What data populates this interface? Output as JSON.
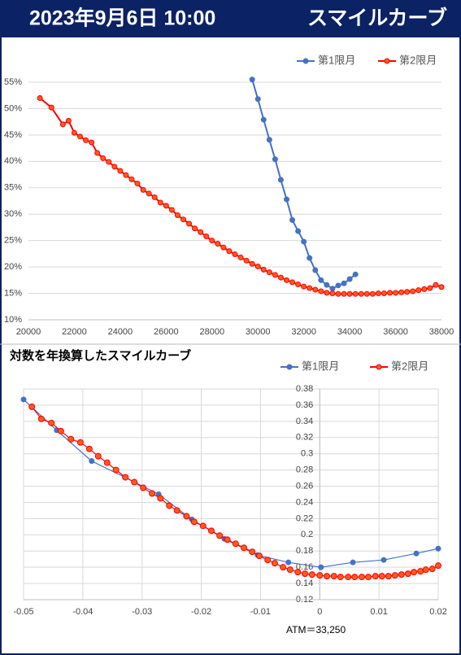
{
  "header": {
    "date": "2023年9月6日 10:00",
    "title": "スマイルカーブ"
  },
  "chart_data": [
    {
      "type": "line",
      "grid": "y",
      "legend": "top-right",
      "xlim": [
        20000,
        38000
      ],
      "xticks": [
        20000,
        22000,
        24000,
        26000,
        28000,
        30000,
        32000,
        34000,
        36000,
        38000
      ],
      "ylim": [
        10,
        55
      ],
      "yticks": [
        {
          "value": 10,
          "label": "10%"
        },
        {
          "value": 15,
          "label": "15%"
        },
        {
          "value": 20,
          "label": "20%"
        },
        {
          "value": 25,
          "label": "25%"
        },
        {
          "value": 30,
          "label": "30%"
        },
        {
          "value": 35,
          "label": "35%"
        },
        {
          "value": 40,
          "label": "40%"
        },
        {
          "value": 45,
          "label": "45%"
        },
        {
          "value": 50,
          "label": "50%"
        },
        {
          "value": 55,
          "label": "55%"
        }
      ],
      "series": [
        {
          "name": "第1限月",
          "color": "#4472c4",
          "x": [
            29750,
            30000,
            30250,
            30500,
            30750,
            31000,
            31250,
            31500,
            31750,
            32000,
            32250,
            32500,
            32750,
            33000,
            33250,
            33500,
            33750,
            34000,
            34250
          ],
          "values": [
            55.5,
            51.8,
            47.9,
            44.1,
            40.4,
            36.5,
            32.8,
            28.9,
            26.8,
            24.8,
            21.7,
            19.4,
            17.5,
            16.6,
            15.9,
            16.5,
            16.9,
            17.7,
            18.6
          ]
        },
        {
          "name": "第2限月",
          "color": "#ff0000",
          "x": [
            20500,
            21000,
            21500,
            21750,
            22000,
            22250,
            22500,
            22750,
            23000,
            23250,
            23500,
            23750,
            24000,
            24250,
            24500,
            24750,
            25000,
            25250,
            25500,
            25750,
            26000,
            26250,
            26500,
            26750,
            27000,
            27250,
            27500,
            27750,
            28000,
            28250,
            28500,
            28750,
            29000,
            29250,
            29500,
            29750,
            30000,
            30250,
            30500,
            30750,
            31000,
            31250,
            31500,
            31750,
            32000,
            32250,
            32500,
            32750,
            33000,
            33250,
            33500,
            33750,
            34000,
            34250,
            34500,
            34750,
            35000,
            35250,
            35500,
            35750,
            36000,
            36250,
            36500,
            36750,
            37000,
            37250,
            37500,
            37750,
            38000
          ],
          "values": [
            52.0,
            50.2,
            47.0,
            47.7,
            45.4,
            44.7,
            44.0,
            43.6,
            41.6,
            40.6,
            39.9,
            39.0,
            38.2,
            37.4,
            36.6,
            35.8,
            34.6,
            33.9,
            33.2,
            32.2,
            31.6,
            30.8,
            29.8,
            29.0,
            28.2,
            27.3,
            26.6,
            25.8,
            25.0,
            24.4,
            23.7,
            23.0,
            22.4,
            21.8,
            21.2,
            20.6,
            20.1,
            19.5,
            19.0,
            18.5,
            18.0,
            17.5,
            17.1,
            16.7,
            16.3,
            16.0,
            15.7,
            15.4,
            15.1,
            15.0,
            14.9,
            14.9,
            14.9,
            14.9,
            14.9,
            14.9,
            14.9,
            15.0,
            15.0,
            15.1,
            15.1,
            15.2,
            15.3,
            15.4,
            15.6,
            15.8,
            16.0,
            16.6,
            16.2
          ]
        }
      ]
    },
    {
      "type": "line",
      "title": "対数を年換算したスマイルカーブ",
      "grid": "both",
      "legend": "top-right",
      "y_axis_crosses": 0,
      "annotation": "ATM＝33,250",
      "xlim": [
        -0.05,
        0.02
      ],
      "xticks": [
        -0.05,
        -0.04,
        -0.03,
        -0.02,
        -0.01,
        0,
        0.01,
        0.02
      ],
      "ylim": [
        0.12,
        0.38
      ],
      "yticks": [
        0.12,
        0.14,
        0.16,
        0.18,
        0.2,
        0.22,
        0.24,
        0.26,
        0.28,
        0.3,
        0.32,
        0.34,
        0.36,
        0.38
      ],
      "series": [
        {
          "name": "第1限月",
          "color": "#4472c4",
          "x": [
            -0.05,
            -0.0444,
            -0.0385,
            -0.0329,
            -0.0272,
            -0.0216,
            -0.0161,
            -0.0105,
            -0.0053,
            0.0002,
            0.0056,
            0.0108,
            0.0163,
            0.02
          ],
          "values": [
            0.367,
            0.329,
            0.291,
            0.271,
            0.25,
            0.219,
            0.195,
            0.175,
            0.166,
            0.16,
            0.166,
            0.169,
            0.177,
            0.183
          ]
        },
        {
          "name": "第2限月",
          "color": "#ff0000",
          "x": [
            -0.0486,
            -0.047,
            -0.0453,
            -0.0437,
            -0.042,
            -0.0404,
            -0.0389,
            -0.0374,
            -0.0359,
            -0.0344,
            -0.0328,
            -0.0313,
            -0.0298,
            -0.0283,
            -0.0269,
            -0.0254,
            -0.0241,
            -0.0225,
            -0.0212,
            -0.0197,
            -0.0183,
            -0.0169,
            -0.0156,
            -0.0142,
            -0.0128,
            -0.0114,
            -0.0102,
            -0.0088,
            -0.0076,
            -0.0062,
            -0.005,
            -0.0037,
            -0.0025,
            -0.0013,
            0,
            0.0012,
            0.0024,
            0.0035,
            0.0048,
            0.0059,
            0.0071,
            0.0082,
            0.0094,
            0.0105,
            0.0116,
            0.0127,
            0.0138,
            0.0149,
            0.0159,
            0.017,
            0.0179,
            0.019,
            0.02
          ],
          "values": [
            0.358,
            0.343,
            0.338,
            0.328,
            0.318,
            0.314,
            0.306,
            0.297,
            0.289,
            0.28,
            0.271,
            0.265,
            0.258,
            0.251,
            0.245,
            0.236,
            0.23,
            0.223,
            0.216,
            0.211,
            0.205,
            0.199,
            0.194,
            0.189,
            0.184,
            0.179,
            0.174,
            0.169,
            0.165,
            0.16,
            0.157,
            0.154,
            0.152,
            0.151,
            0.15,
            0.149,
            0.149,
            0.148,
            0.148,
            0.148,
            0.148,
            0.148,
            0.149,
            0.149,
            0.149,
            0.15,
            0.151,
            0.152,
            0.154,
            0.155,
            0.157,
            0.158,
            0.162
          ]
        }
      ]
    }
  ]
}
